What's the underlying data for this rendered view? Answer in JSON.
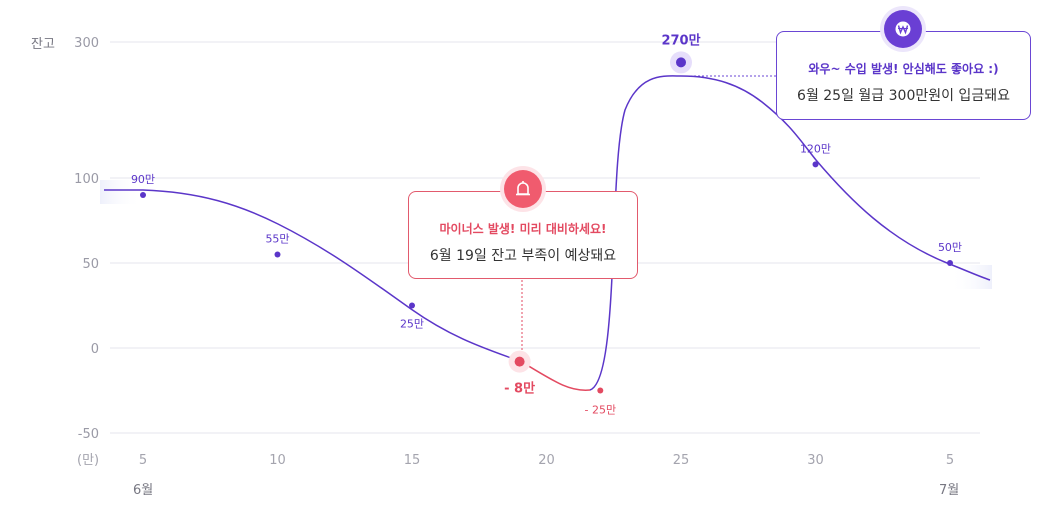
{
  "chart_data": {
    "type": "line",
    "ylabel": "잔고",
    "unit_label": "(만)",
    "y_ticks": [
      "300",
      "100",
      "50",
      "0",
      "-50"
    ],
    "x_ticks": [
      "5",
      "10",
      "15",
      "20",
      "25",
      "30",
      "5"
    ],
    "month_labels": [
      "6월",
      "7월"
    ],
    "grid": true,
    "points": [
      {
        "x": "6/5",
        "value": 90,
        "label": "90만"
      },
      {
        "x": "6/10",
        "value": 55,
        "label": "55만"
      },
      {
        "x": "6/15",
        "value": 25,
        "label": "25만"
      },
      {
        "x": "6/19",
        "value": -8,
        "label": "- 8만"
      },
      {
        "x": "6/22",
        "value": -25,
        "label": "- 25만"
      },
      {
        "x": "6/25",
        "value": 270,
        "label": "270만"
      },
      {
        "x": "6/30",
        "value": 120,
        "label": "120만"
      },
      {
        "x": "7/5",
        "value": 50,
        "label": "50만"
      }
    ],
    "series_color": "#5b36c9",
    "negative_color": "#e34a61"
  },
  "tooltips": {
    "minus": {
      "title": "마이너스 발생! 미리 대비하세요!",
      "body": "6월 19일 잔고 부족이 예상돼요",
      "icon": "alarm-bell-icon"
    },
    "income": {
      "title": "와우~ 수입 발생! 안심해도 좋아요 :)",
      "body": "6월 25일 월급 300만원이 입금돼요",
      "icon": "won-coin-icon"
    }
  }
}
